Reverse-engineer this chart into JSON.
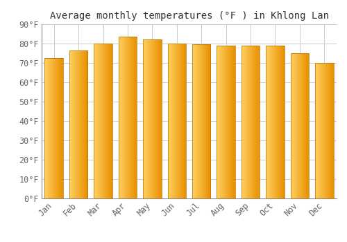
{
  "months": [
    "Jan",
    "Feb",
    "Mar",
    "Apr",
    "May",
    "Jun",
    "Jul",
    "Aug",
    "Sep",
    "Oct",
    "Nov",
    "Dec"
  ],
  "values": [
    72.5,
    76.5,
    80.0,
    83.5,
    82.0,
    80.0,
    79.5,
    79.0,
    79.0,
    79.0,
    75.0,
    70.0
  ],
  "title": "Average monthly temperatures (°F ) in Khlong Lan",
  "bar_color_light": "#FFD060",
  "bar_color_dark": "#E89000",
  "bar_edge_color": "#B87000",
  "background_color": "#FFFFFF",
  "grid_color": "#CCCCCC",
  "ylim": [
    0,
    90
  ],
  "title_fontsize": 10,
  "tick_fontsize": 8.5
}
